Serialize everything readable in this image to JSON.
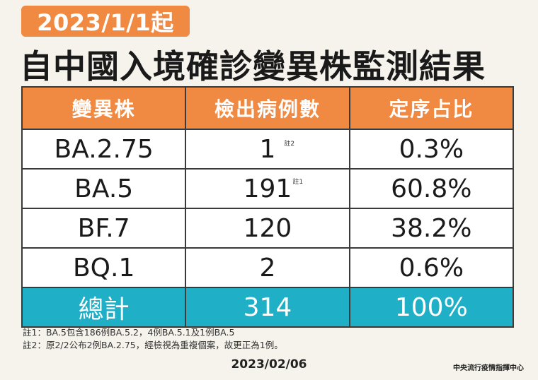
{
  "header": {
    "date_badge": "2023/1/1起",
    "title": "自中國入境確診變異株監測結果"
  },
  "table": {
    "columns": [
      "變異株",
      "檢出病例數",
      "定序占比"
    ],
    "rows": [
      {
        "variant": "BA.2.75",
        "cases": "1",
        "note": "註2",
        "share": "0.3%"
      },
      {
        "variant": "BA.5",
        "cases": "191",
        "note": "註1",
        "share": "60.8%"
      },
      {
        "variant": "BF.7",
        "cases": "120",
        "note": "",
        "share": "38.2%"
      },
      {
        "variant": "BQ.1",
        "cases": "2",
        "note": "",
        "share": "0.6%"
      }
    ],
    "total": {
      "label": "總計",
      "cases": "314",
      "share": "100%"
    }
  },
  "notes": [
    "註1：BA.5包含186例BA.5.2，4例BA.5.1及1例BA.5",
    "註2：原2/2公布2例BA.2.75，經檢視為重複個案，故更正為1例。"
  ],
  "footer": {
    "date": "2023/02/06",
    "source": "中央流行疫情指揮中心"
  },
  "colors": {
    "orange": "#f08a43",
    "teal": "#1fb0c8",
    "background": "#f6f3ec"
  }
}
